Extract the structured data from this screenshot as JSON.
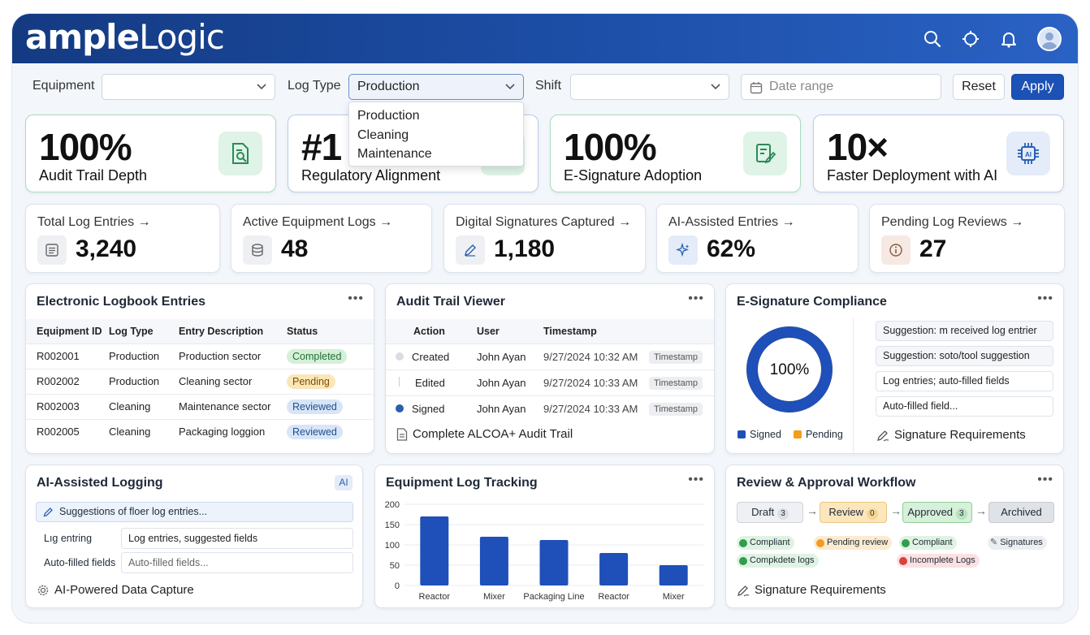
{
  "app": {
    "logo_bold": "ample",
    "logo_regular": "Logic",
    "header_icons": [
      "search-icon",
      "target-icon",
      "bell-icon",
      "user-avatar"
    ]
  },
  "filters": {
    "equipment_label": "Equipment",
    "equipment_value": "",
    "log_type_label": "Log Type",
    "log_type_value": "Production",
    "log_type_options": [
      "Production",
      "Cleaning",
      "Maintenance"
    ],
    "shift_label": "Shift",
    "shift_value": "",
    "date_placeholder": "Date range",
    "reset_label": "Reset",
    "apply_label": "Apply"
  },
  "kpis": [
    {
      "value": "100%",
      "label": "Audit Trail Depth",
      "icon": "document-search-icon"
    },
    {
      "value": "#1",
      "label": "Regulatory Alignment",
      "icon": "shield-icon"
    },
    {
      "value": "100%",
      "label": "E-Signature Adoption",
      "icon": "signature-icon"
    },
    {
      "value": "10×",
      "label": "Faster Deployment with AI",
      "icon": "ai-chip-icon"
    }
  ],
  "stats": [
    {
      "title": "Total Log Entries",
      "value": "3,240",
      "icon": "list-icon"
    },
    {
      "title": "Active Equipment Logs",
      "value": "48",
      "icon": "database-icon"
    },
    {
      "title": "Digital Signatures Captured",
      "value": "1,180",
      "icon": "pen-icon"
    },
    {
      "title": "AI-Assisted Entries",
      "value": "62%",
      "icon": "sparkle-icon"
    },
    {
      "title": "Pending Log Reviews",
      "value": "27",
      "icon": "info-icon"
    }
  ],
  "logbook": {
    "title": "Electronic Logbook Entries",
    "columns": [
      "Equipment ID",
      "Log Type",
      "Entry Description",
      "Status"
    ],
    "rows": [
      [
        "R002001",
        "Production",
        "Production sector",
        "Completed"
      ],
      [
        "R002002",
        "Production",
        "Cleaning sector",
        "Pending"
      ],
      [
        "R002003",
        "Cleaning",
        "Maintenance sector",
        "Reviewed"
      ],
      [
        "R002005",
        "Cleaning",
        "Packaging loggion",
        "Reviewed"
      ]
    ]
  },
  "audit": {
    "title": "Audit Trail Viewer",
    "columns": [
      "Action",
      "User",
      "Timestamp"
    ],
    "rows": [
      [
        "Created",
        "John Ayan",
        "9/27/2024 10:32 AM",
        "Timestamp"
      ],
      [
        "Edited",
        "John Ayan",
        "9/27/2024 10:33 AM",
        "Timestamp"
      ],
      [
        "Signed",
        "John Ayan",
        "9/27/2024 10:33 AM",
        "Timestamp"
      ]
    ],
    "footer": "Complete ALCOA+ Audit Trail"
  },
  "esig": {
    "title": "E-Signature Compliance",
    "donut_label": "100%",
    "signed_fraction": 1.0,
    "legend": [
      "Signed",
      "Pending"
    ],
    "suggestions": [
      "Suggestion: m received log entrier",
      "Suggestion: soto/tool suggestion",
      "Log entries; auto-filled fields",
      "Auto-filled field..."
    ],
    "footer": "Signature Requirements"
  },
  "ai_logging": {
    "title": "AI-Assisted Logging",
    "badge": "AI",
    "suggestion": "Suggestions of floer log entries...",
    "field1_label": "Lıg entring",
    "field1_value": "Log entries, suggested fields",
    "field2_label": "Auto-filled fields",
    "field2_placeholder": "Auto-filled fields...",
    "footer": "AI-Powered Data Capture"
  },
  "tracking": {
    "title": "Equipment Log Tracking"
  },
  "chart_data": {
    "type": "bar",
    "categories": [
      "Reactor",
      "Mixer",
      "Packaging Line",
      "Reactor",
      "Mixer"
    ],
    "values": [
      170,
      120,
      112,
      80,
      50
    ],
    "ylim": [
      0,
      200
    ],
    "yticks": [
      "200",
      "150",
      "100",
      "50",
      "0"
    ],
    "color": "#1f4fb8",
    "grid": true
  },
  "workflow": {
    "title": "Review & Approval Workflow",
    "steps": [
      {
        "label": "Draft",
        "count": "3"
      },
      {
        "label": "Review",
        "count": "0"
      },
      {
        "label": "Approved",
        "count": "3"
      },
      {
        "label": "Archived",
        "count": ""
      }
    ],
    "tags": [
      "Compliant",
      "Pending review",
      "Compliant",
      "Signatures",
      "Compkdete logs",
      "Incomplete Logs"
    ],
    "footer": "Signature Requirements"
  }
}
